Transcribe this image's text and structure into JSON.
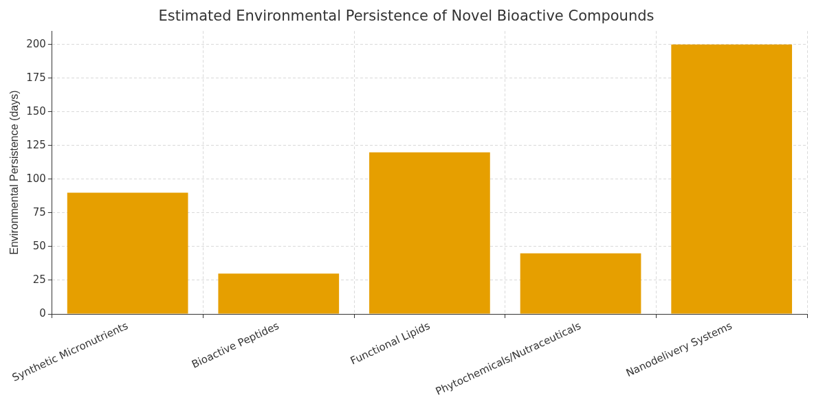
{
  "chart_data": {
    "type": "bar",
    "title": "Estimated Environmental Persistence of Novel Bioactive Compounds",
    "ylabel": "Environmental Persistence (days)",
    "categories": [
      "Synthetic Micronutrients",
      "Bioactive Peptides",
      "Functional Lipids",
      "Phytochemicals/Nutraceuticals",
      "Nanodelivery Systems"
    ],
    "values": [
      90,
      30,
      120,
      45,
      200
    ],
    "color": "#e69f00",
    "ylim": [
      0,
      210
    ],
    "yticks": [
      0,
      25,
      50,
      75,
      100,
      125,
      150,
      175,
      200
    ],
    "grid": true
  }
}
